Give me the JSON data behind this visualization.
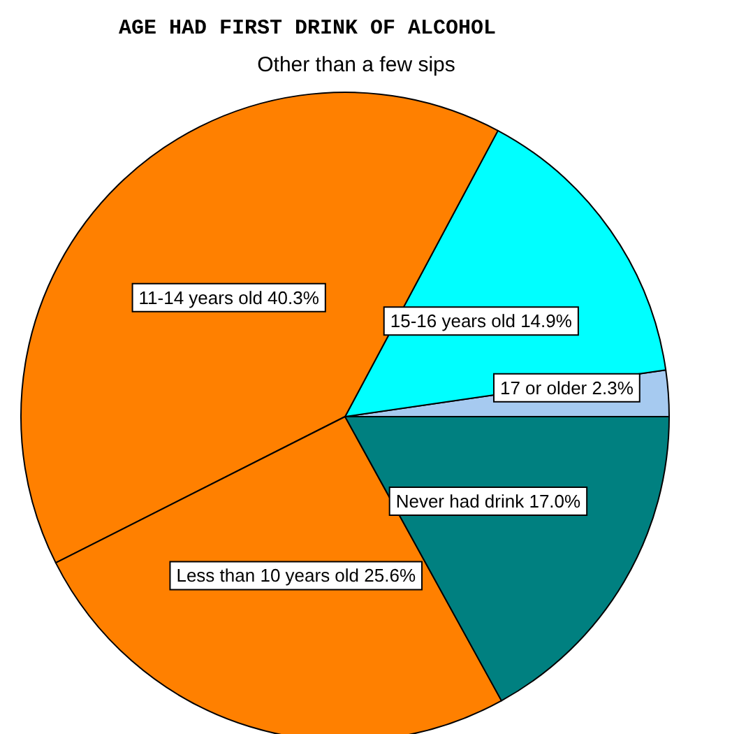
{
  "chart_data": {
    "type": "pie",
    "title": "AGE HAD FIRST DRINK OF ALCOHOL",
    "subtitle": "Other than a few sips",
    "categories": [
      "17 or older",
      "15-16 years old",
      "11-14 years old",
      "Less than 10 years old",
      "Never had drink"
    ],
    "values": [
      2.3,
      14.9,
      40.3,
      25.6,
      17.0
    ],
    "value_labels": [
      "2.3%",
      "14.9%",
      "40.3%",
      "25.6%",
      "17.0%"
    ],
    "colors": [
      "#a6caf0",
      "#00ffff",
      "#ff8000",
      "#ff8000",
      "#008080"
    ],
    "legend": false
  }
}
